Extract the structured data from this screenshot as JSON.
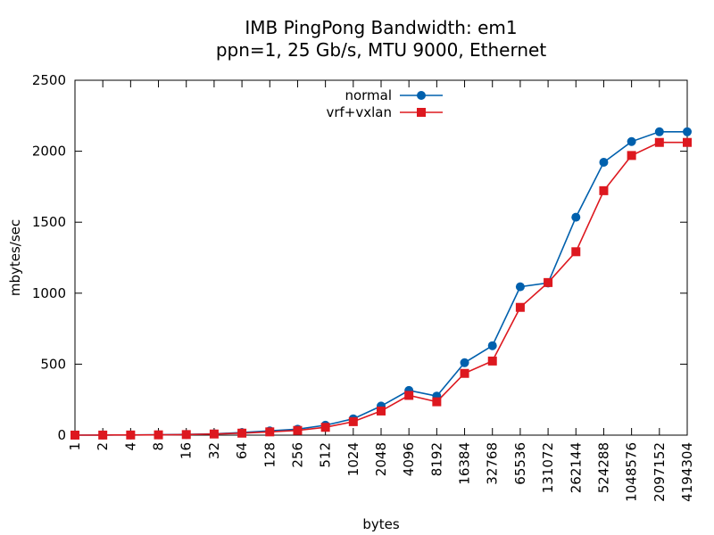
{
  "chart_data": {
    "type": "line",
    "title": "IMB PingPong Bandwidth: em1",
    "subtitle": "ppn=1, 25 Gb/s, MTU 9000, Ethernet",
    "xlabel": "bytes",
    "ylabel": "mbytes/sec",
    "ylim": [
      0,
      2500
    ],
    "yticks": [
      0,
      500,
      1000,
      1500,
      2000,
      2500
    ],
    "categories": [
      "1",
      "2",
      "4",
      "8",
      "16",
      "32",
      "64",
      "128",
      "256",
      "512",
      "1024",
      "2048",
      "4096",
      "8192",
      "16384",
      "32768",
      "65536",
      "131072",
      "262144",
      "524288",
      "1048576",
      "2097152",
      "4194304"
    ],
    "grid": false,
    "legend_position": "top-center",
    "series": [
      {
        "name": "normal",
        "color": "#0060ad",
        "marker": "circle",
        "values": [
          0.3,
          0.6,
          1.2,
          2.4,
          4.8,
          9.5,
          18,
          30,
          42,
          70,
          115,
          205,
          315,
          275,
          510,
          630,
          1045,
          1072,
          1535,
          1922,
          2068,
          2137,
          2137
        ]
      },
      {
        "name": "vrf+vxlan",
        "color": "#dd181f",
        "marker": "square",
        "values": [
          0.2,
          0.5,
          1.0,
          2.0,
          4.0,
          8.0,
          14,
          23,
          33,
          55,
          95,
          170,
          280,
          235,
          435,
          522,
          900,
          1075,
          1292,
          1722,
          1970,
          2062,
          2062
        ]
      }
    ]
  }
}
